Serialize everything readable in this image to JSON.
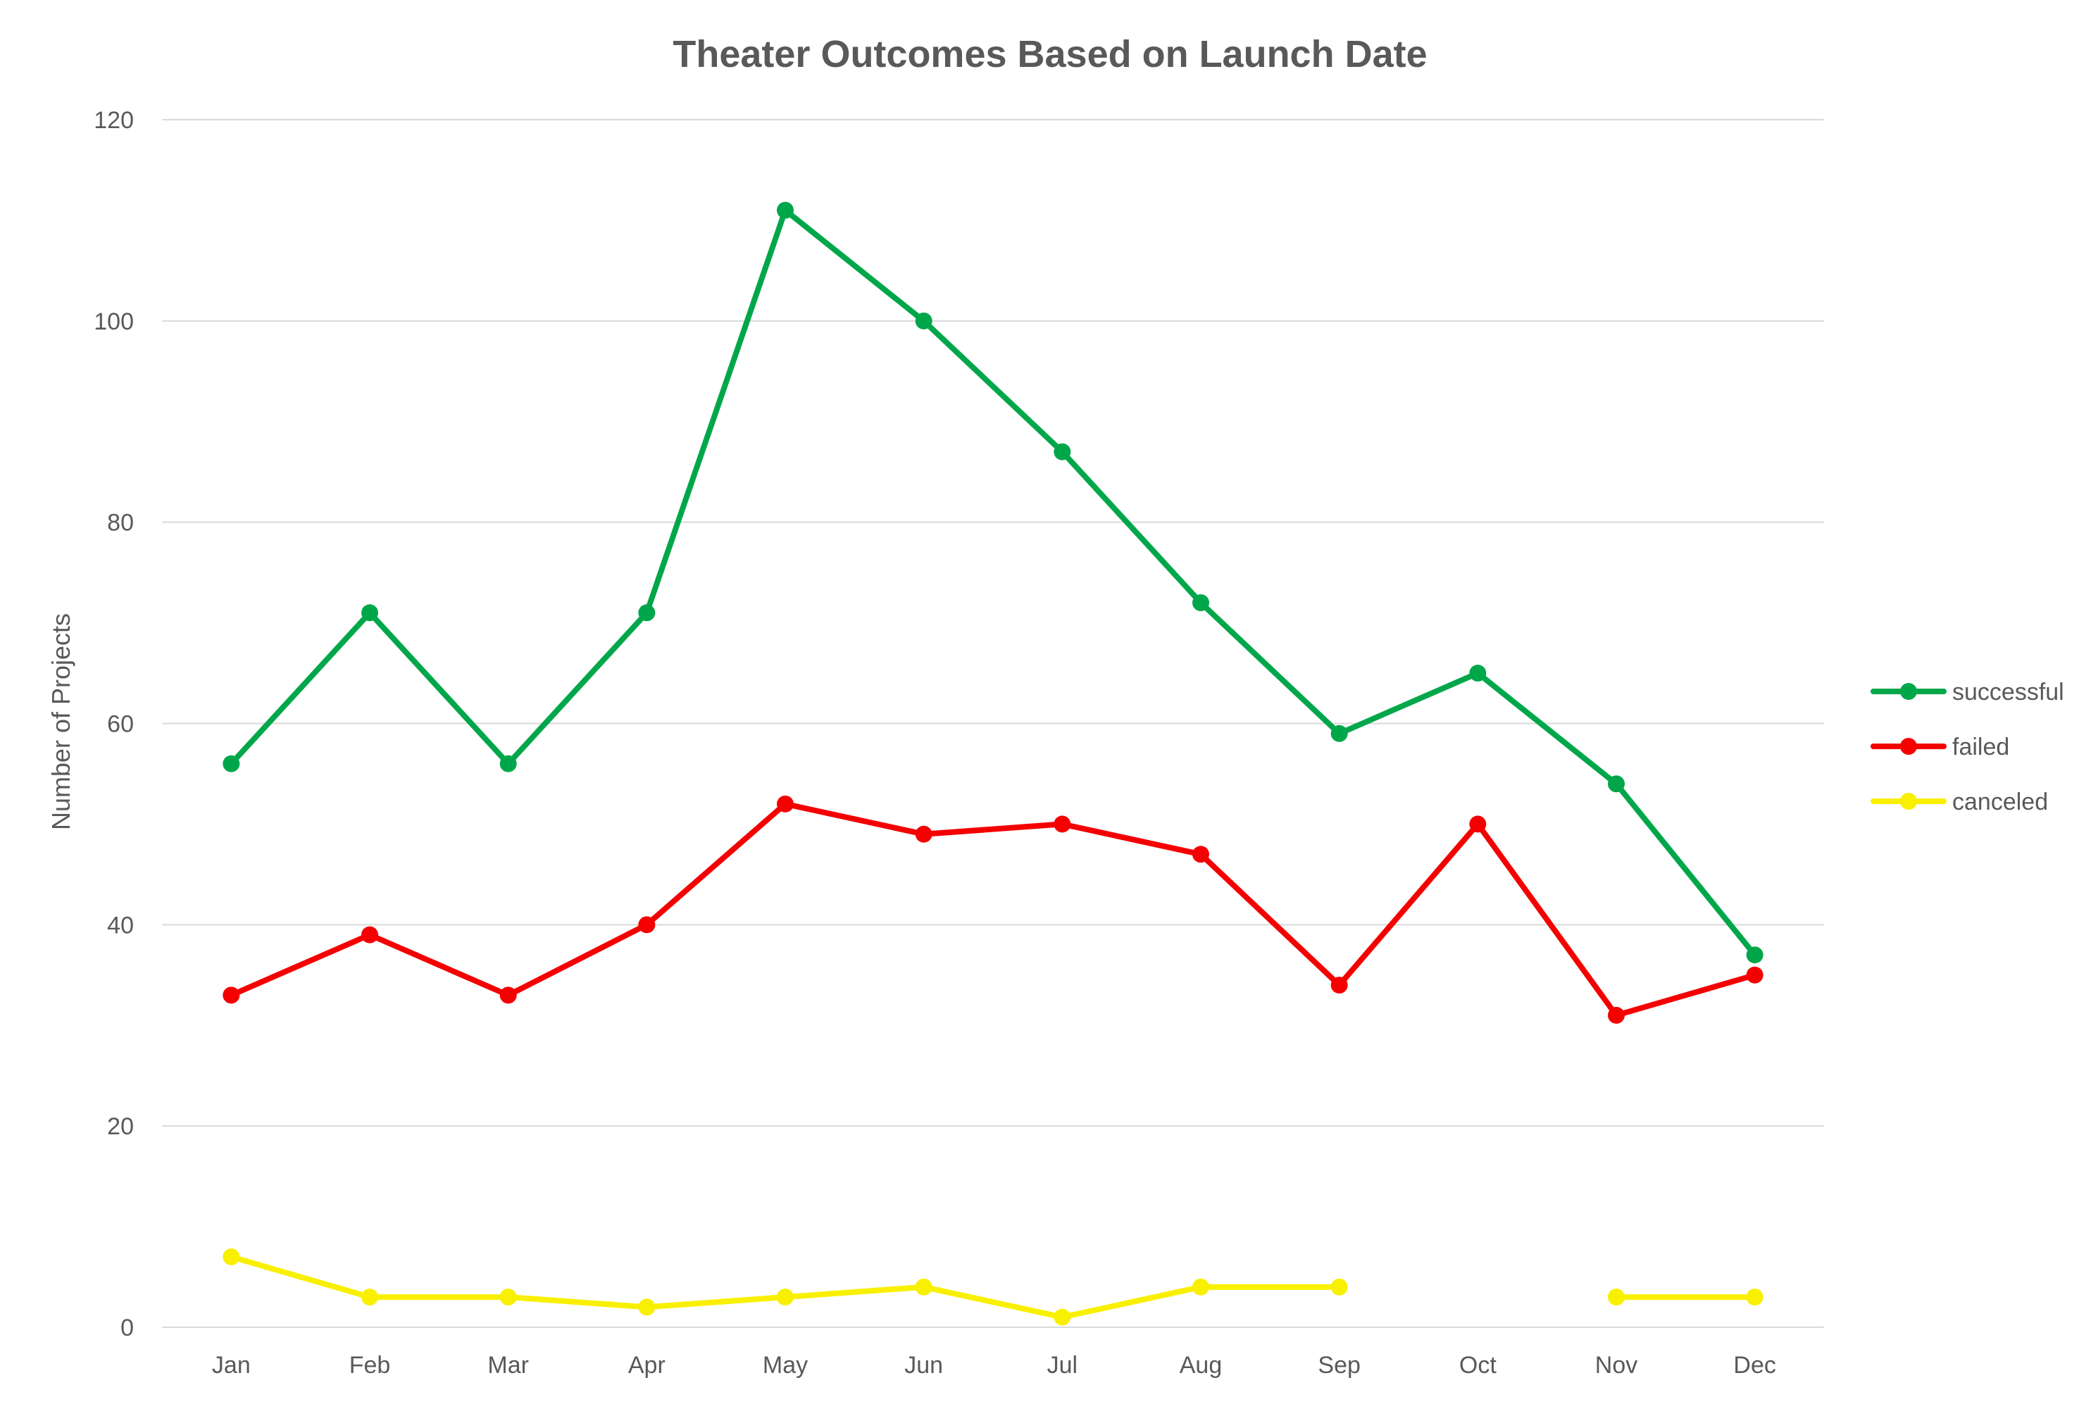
{
  "chart_data": {
    "type": "line",
    "title": "Theater Outcomes Based on Launch Date",
    "xlabel": "",
    "ylabel": "Number of Projects",
    "categories": [
      "Jan",
      "Feb",
      "Mar",
      "Apr",
      "May",
      "Jun",
      "Jul",
      "Aug",
      "Sep",
      "Oct",
      "Nov",
      "Dec"
    ],
    "ylim": [
      0,
      120
    ],
    "yticks": [
      0,
      20,
      40,
      60,
      80,
      100,
      120
    ],
    "grid": true,
    "legend_position": "right",
    "series": [
      {
        "name": "successful",
        "color": "#00A74A",
        "values": [
          56,
          71,
          56,
          71,
          111,
          100,
          87,
          72,
          59,
          65,
          54,
          37
        ]
      },
      {
        "name": "failed",
        "color": "#F40000",
        "values": [
          33,
          39,
          33,
          40,
          52,
          49,
          50,
          47,
          34,
          50,
          31,
          35
        ]
      },
      {
        "name": "canceled",
        "color": "#F9F000",
        "values": [
          7,
          3,
          3,
          2,
          3,
          4,
          1,
          4,
          4,
          null,
          3,
          3
        ]
      }
    ]
  }
}
